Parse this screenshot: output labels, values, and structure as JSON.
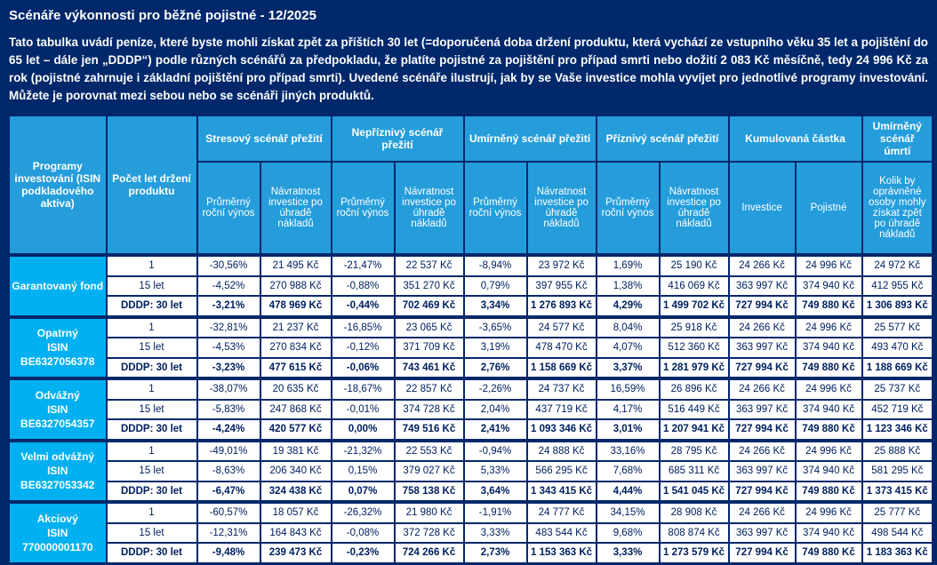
{
  "page": {
    "title": "Scénáře výkonnosti pro běžné pojistné - 12/2025",
    "intro": "Tato tabulka uvádí peníze, které byste mohli získat zpět za příštích 30 let (=doporučená doba držení produktu, která vychází ze vstupního věku 35 let a pojištění do 65 let – dále jen „DDDP“) podle různých scénářů za předpokladu, že platíte pojistné za pojištění pro případ smrti nebo dožití 2 083 Kč měsíčně, tedy 24 996 Kč za rok (pojistné zahrnuje i základní pojištění pro případ smrti). Uvedené scénáře ilustrují, jak by se Vaše investice mohla vyvíjet pro jednotlivé programy investování. Můžete je porovnat mezi sebou nebo se scénáři jiných produktů."
  },
  "colors": {
    "background_navy": "#00286B",
    "header_blue": "#259DDB",
    "program_blue": "#00B0F0",
    "cell_text_navy": "#002060",
    "cell_background": "#FFFFFF",
    "text_white": "#FFFFFF"
  },
  "table": {
    "programs_header": "Programy investování (ISIN podkladového aktiva)",
    "years_header": "Počet let držení produktu",
    "scenarios": [
      {
        "label": "Stresový scénář přežití",
        "sub": [
          "Průměrný roční výnos",
          "Návratnost investice po úhradě nákladů"
        ]
      },
      {
        "label": "Nepříznivý scénář přežití",
        "sub": [
          "Průměrný roční výnos",
          "Návratnost investice po úhradě nákladů"
        ]
      },
      {
        "label": "Umírněný scénář přežití",
        "sub": [
          "Průměrný roční výnos",
          "Návratnost investice po úhradě nákladů"
        ]
      },
      {
        "label": "Příznivý scénář přežití",
        "sub": [
          "Průměrný roční výnos",
          "Návratnost investice po úhradě nákladů"
        ]
      }
    ],
    "cumulative": {
      "label": "Kumulovaná částka",
      "sub": [
        "Investice",
        "Pojistné"
      ]
    },
    "death": {
      "label": "Umírněný scénář úmrtí",
      "sub": "Kolik by oprávněné osoby mohly získat zpět po úhradě nákladů"
    },
    "groups": [
      {
        "name_lines": [
          "Garantovaný fond"
        ],
        "rows": [
          {
            "period": "1",
            "bold": false,
            "values": [
              "-30,56%",
              "21 495 Kč",
              "-21,47%",
              "22 537 Kč",
              "-8,94%",
              "23 972 Kč",
              "1,69%",
              "25 190 Kč",
              "24 266 Kč",
              "24 996 Kč",
              "24 972 Kč"
            ]
          },
          {
            "period": "15 let",
            "bold": false,
            "values": [
              "-4,52%",
              "270 988 Kč",
              "-0,88%",
              "351 270 Kč",
              "0,79%",
              "397 955 Kč",
              "1,38%",
              "416 069 Kč",
              "363 997 Kč",
              "374 940 Kč",
              "412 955 Kč"
            ]
          },
          {
            "period": "DDDP: 30 let",
            "bold": true,
            "values": [
              "-3,21%",
              "478 969 Kč",
              "-0,44%",
              "702 469 Kč",
              "3,34%",
              "1 276 893 Kč",
              "4,29%",
              "1 499 702 Kč",
              "727 994 Kč",
              "749 880 Kč",
              "1 306 893 Kč"
            ]
          }
        ]
      },
      {
        "name_lines": [
          "Opatrný",
          "ISIN",
          "BE6327056378"
        ],
        "rows": [
          {
            "period": "1",
            "bold": false,
            "values": [
              "-32,81%",
              "21 237 Kč",
              "-16,85%",
              "23 065 Kč",
              "-3,65%",
              "24 577 Kč",
              "8,04%",
              "25 918 Kč",
              "24 266 Kč",
              "24 996 Kč",
              "25 577 Kč"
            ]
          },
          {
            "period": "15 let",
            "bold": false,
            "values": [
              "-4,53%",
              "270 834 Kč",
              "-0,12%",
              "371 709 Kč",
              "3,19%",
              "478 470 Kč",
              "4,07%",
              "512 360 Kč",
              "363 997 Kč",
              "374 940 Kč",
              "493 470 Kč"
            ]
          },
          {
            "period": "DDDP: 30 let",
            "bold": true,
            "values": [
              "-3,23%",
              "477 615 Kč",
              "-0,06%",
              "743 461 Kč",
              "2,76%",
              "1 158 669 Kč",
              "3,37%",
              "1 281 979 Kč",
              "727 994 Kč",
              "749 880 Kč",
              "1 188 669 Kč"
            ]
          }
        ]
      },
      {
        "name_lines": [
          "Odvážný",
          "ISIN",
          "BE6327054357"
        ],
        "rows": [
          {
            "period": "1",
            "bold": false,
            "values": [
              "-38,07%",
              "20 635 Kč",
              "-18,67%",
              "22 857 Kč",
              "-2,26%",
              "24 737 Kč",
              "16,59%",
              "26 896 Kč",
              "24 266 Kč",
              "24 996 Kč",
              "25 737 Kč"
            ]
          },
          {
            "period": "15 let",
            "bold": false,
            "values": [
              "-5,83%",
              "247 868 Kč",
              "-0,01%",
              "374 728 Kč",
              "2,04%",
              "437 719 Kč",
              "4,17%",
              "516 449 Kč",
              "363 997 Kč",
              "374 940 Kč",
              "452 719 Kč"
            ]
          },
          {
            "period": "DDDP: 30 let",
            "bold": true,
            "values": [
              "-4,24%",
              "420 577 Kč",
              "0,00%",
              "749 516 Kč",
              "2,41%",
              "1 093 346 Kč",
              "3,01%",
              "1 207 941 Kč",
              "727 994 Kč",
              "749 880 Kč",
              "1 123 346 Kč"
            ]
          }
        ]
      },
      {
        "name_lines": [
          "Velmi odvážný",
          "ISIN",
          "BE6327053342"
        ],
        "rows": [
          {
            "period": "1",
            "bold": false,
            "values": [
              "-49,01%",
              "19 381 Kč",
              "-21,32%",
              "22 553 Kč",
              "-0,94%",
              "24 888 Kč",
              "33,16%",
              "28 795 Kč",
              "24 266 Kč",
              "24 996 Kč",
              "25 888 Kč"
            ]
          },
          {
            "period": "15 let",
            "bold": false,
            "values": [
              "-8,63%",
              "206 340 Kč",
              "0,15%",
              "379 027 Kč",
              "5,33%",
              "566 295 Kč",
              "7,68%",
              "685 311 Kč",
              "363 997 Kč",
              "374 940 Kč",
              "581 295 Kč"
            ]
          },
          {
            "period": "DDDP: 30 let",
            "bold": true,
            "values": [
              "-6,47%",
              "324 438 Kč",
              "0,07%",
              "758 138 Kč",
              "3,64%",
              "1 343 415 Kč",
              "4,44%",
              "1 541 045 Kč",
              "727 994 Kč",
              "749 880 Kč",
              "1 373 415 Kč"
            ]
          }
        ]
      },
      {
        "name_lines": [
          "Akciový",
          "ISIN",
          "770000001170"
        ],
        "rows": [
          {
            "period": "1",
            "bold": false,
            "values": [
              "-60,57%",
              "18 057 Kč",
              "-26,32%",
              "21 980 Kč",
              "-1,91%",
              "24 777 Kč",
              "34,15%",
              "28 908 Kč",
              "24 266 Kč",
              "24 996 Kč",
              "25 777 Kč"
            ]
          },
          {
            "period": "15 let",
            "bold": false,
            "values": [
              "-12,31%",
              "164 843 Kč",
              "-0,08%",
              "372 728 Kč",
              "3,33%",
              "483 544 Kč",
              "9,68%",
              "808 874 Kč",
              "363 997 Kč",
              "374 940 Kč",
              "498 544 Kč"
            ]
          },
          {
            "period": "DDDP: 30 let",
            "bold": true,
            "values": [
              "-9,48%",
              "239 473 Kč",
              "-0,23%",
              "724 266 Kč",
              "2,73%",
              "1 153 363 Kč",
              "3,33%",
              "1 273 579 Kč",
              "727 994 Kč",
              "749 880 Kč",
              "1 183 363 Kč"
            ]
          }
        ]
      }
    ]
  }
}
